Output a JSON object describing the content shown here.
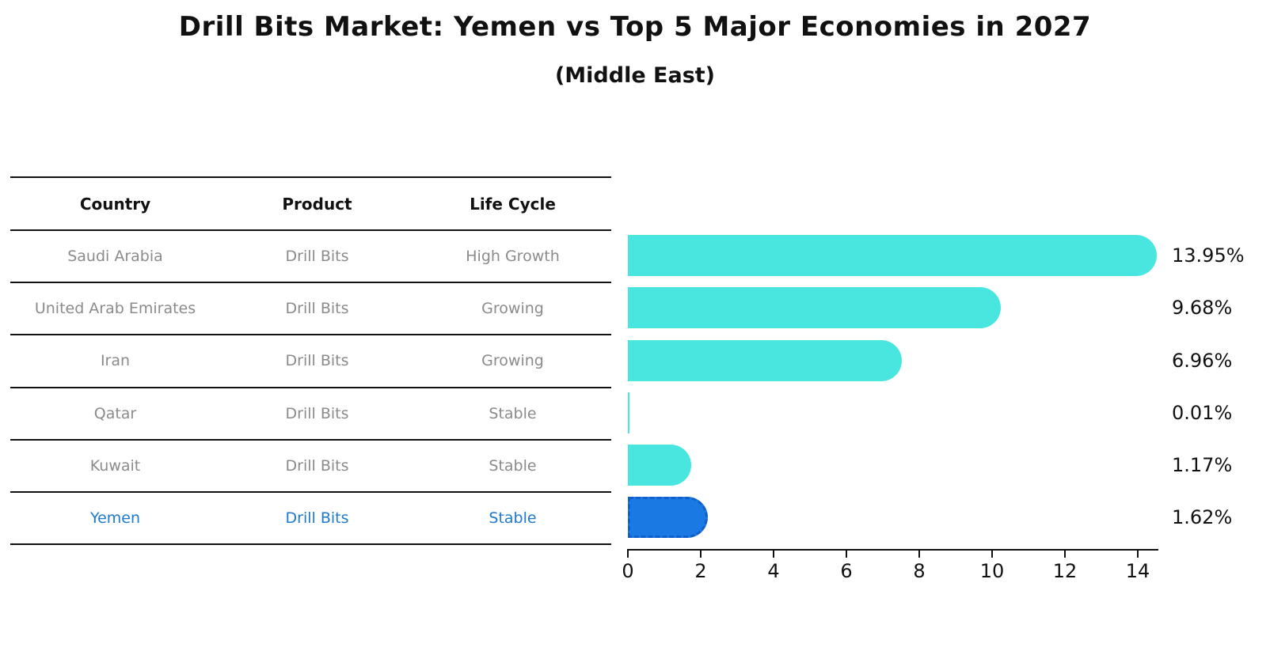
{
  "title": "Drill Bits Market: Yemen vs Top 5 Major Economies in 2027",
  "subtitle": "(Middle East)",
  "table": {
    "headers": [
      "Country",
      "Product",
      "Life Cycle"
    ],
    "rows": [
      {
        "country": "Saudi Arabia",
        "product": "Drill Bits",
        "life_cycle": "High Growth",
        "highlighted": false
      },
      {
        "country": "United Arab Emirates",
        "product": "Drill Bits",
        "life_cycle": "Growing",
        "highlighted": false
      },
      {
        "country": "Iran",
        "product": "Drill Bits",
        "life_cycle": "Growing",
        "highlighted": false
      },
      {
        "country": "Qatar",
        "product": "Drill Bits",
        "life_cycle": "Stable",
        "highlighted": false
      },
      {
        "country": "Kuwait",
        "product": "Drill Bits",
        "life_cycle": "Stable",
        "highlighted": false
      },
      {
        "country": "Yemen",
        "product": "Drill Bits",
        "life_cycle": "Stable",
        "highlighted": true
      }
    ]
  },
  "chart_data": {
    "type": "bar",
    "orientation": "horizontal",
    "title": "Drill Bits Market: Yemen vs Top 5 Major Economies in 2027",
    "subtitle": "(Middle East)",
    "categories": [
      "Saudi Arabia",
      "United Arab Emirates",
      "Iran",
      "Qatar",
      "Kuwait",
      "Yemen"
    ],
    "values": [
      13.95,
      9.68,
      6.96,
      0.01,
      1.17,
      1.62
    ],
    "value_labels": [
      "13.95%",
      "9.68%",
      "6.96%",
      "0.01%",
      "1.17%",
      "1.62%"
    ],
    "xlabel": "",
    "ylabel": "",
    "xlim": [
      0,
      14.57
    ],
    "x_ticks": [
      "0",
      "2",
      "4",
      "6",
      "8",
      "10",
      "12",
      "14"
    ],
    "grid": false,
    "legend": false,
    "bar_color": "#49e6e0",
    "highlight": {
      "index": 5,
      "category": "Yemen",
      "color": "#1b79e3",
      "border_color": "#0f5ec9",
      "border_style": "dashed"
    }
  },
  "colors": {
    "background": "#ffffff",
    "bar_cyan": "#49e6e0",
    "bar_blue": "#1b79e3",
    "highlight_text_blue": "#1e79d0",
    "table_text_gray": "#8b8b8b",
    "line_black": "#111111"
  }
}
